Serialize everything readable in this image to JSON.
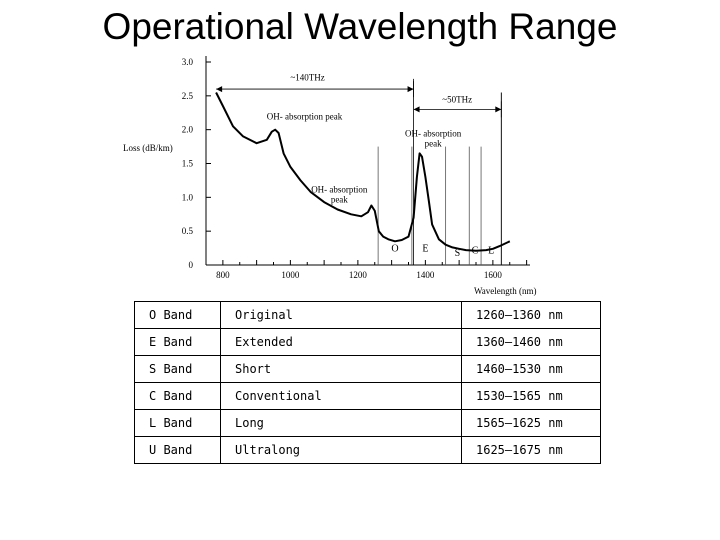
{
  "title": "Operational Wavelength Range",
  "chart_data": {
    "type": "line",
    "xlabel": "Wavelength (nm)",
    "ylabel": "Loss (dB/km)",
    "xlim": [
      750,
      1710
    ],
    "ylim": [
      0,
      3.0
    ],
    "xticks": [
      "800",
      "1000",
      "1200",
      "1400",
      "1600"
    ],
    "yticks": [
      "0",
      "0.5",
      "1.0",
      "1.5",
      "2.0",
      "2.5",
      "3.0"
    ],
    "grid": false,
    "series": [
      {
        "x": [
          780,
          800,
          830,
          860,
          900,
          930,
          945,
          955,
          965,
          980,
          1000,
          1030,
          1060,
          1100,
          1140,
          1180,
          1210,
          1230,
          1240,
          1250,
          1262,
          1275,
          1290,
          1310,
          1330,
          1350,
          1365,
          1375,
          1383,
          1390,
          1400,
          1410,
          1420,
          1440,
          1460,
          1480,
          1500,
          1520,
          1550,
          1580,
          1600,
          1620,
          1650
        ],
        "y": [
          2.55,
          2.35,
          2.05,
          1.9,
          1.8,
          1.85,
          1.97,
          2.0,
          1.95,
          1.65,
          1.45,
          1.25,
          1.08,
          0.93,
          0.82,
          0.75,
          0.72,
          0.78,
          0.88,
          0.8,
          0.5,
          0.42,
          0.38,
          0.35,
          0.37,
          0.42,
          0.7,
          1.3,
          1.65,
          1.6,
          1.3,
          0.95,
          0.6,
          0.38,
          0.3,
          0.26,
          0.24,
          0.22,
          0.21,
          0.22,
          0.24,
          0.28,
          0.35
        ]
      }
    ],
    "band_edges": [
      1260,
      1360,
      1460,
      1530,
      1565,
      1625
    ],
    "band_letters": [
      {
        "label": "O",
        "x": 1310,
        "y": 0.2
      },
      {
        "label": "E",
        "x": 1400,
        "y": 0.2
      },
      {
        "label": "S",
        "x": 1495,
        "y": 0.13
      },
      {
        "label": "C",
        "x": 1547,
        "y": 0.17
      },
      {
        "label": "L",
        "x": 1595,
        "y": 0.17
      }
    ],
    "spans": [
      {
        "label": "~140THz",
        "x1": 780,
        "x2": 1365,
        "y": 2.6,
        "lx": 1000,
        "ly": 2.73
      },
      {
        "label": "~50THz",
        "x1": 1365,
        "x2": 1625,
        "y": 2.3,
        "lx": 1450,
        "ly": 2.4
      }
    ],
    "annotations": [
      {
        "lines": [
          "OH- absorption peak"
        ],
        "x": 930,
        "y": 2.15
      },
      {
        "lines": [
          "OH- absorption",
          "peak"
        ],
        "x": 1145,
        "y": 1.07
      },
      {
        "lines": [
          "OH- absorption",
          "peak"
        ],
        "x": 1423,
        "y": 1.9
      }
    ]
  },
  "table": {
    "rows": [
      {
        "band": "O Band",
        "name": "Original",
        "range": "1260–1360 nm"
      },
      {
        "band": "E Band",
        "name": "Extended",
        "range": "1360–1460 nm"
      },
      {
        "band": "S Band",
        "name": "Short",
        "range": "1460–1530 nm"
      },
      {
        "band": "C Band",
        "name": "Conventional",
        "range": "1530–1565 nm"
      },
      {
        "band": "L Band",
        "name": "Long",
        "range": "1565–1625 nm"
      },
      {
        "band": "U Band",
        "name": "Ultralong",
        "range": "1625–1675 nm"
      }
    ]
  }
}
